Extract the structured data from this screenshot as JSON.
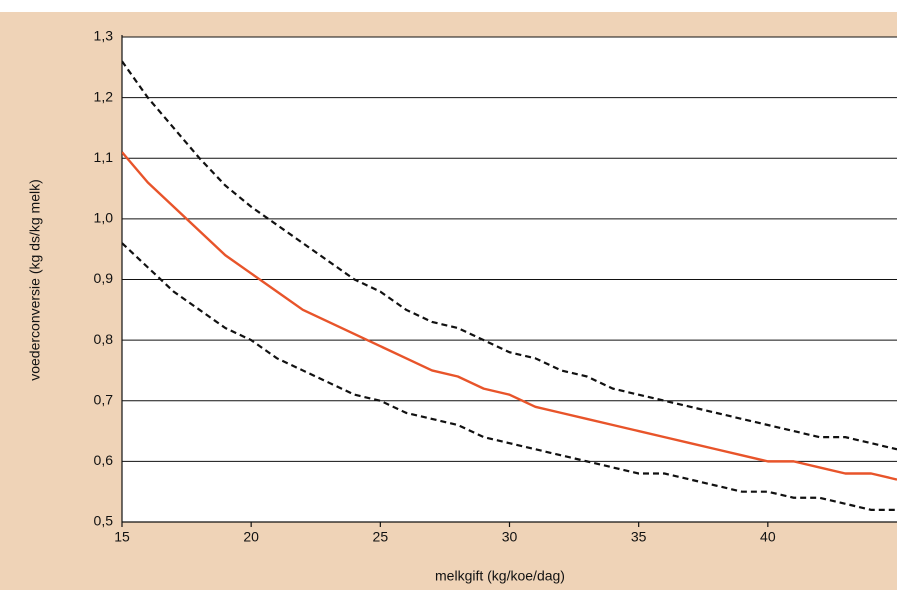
{
  "chart_data": {
    "type": "line",
    "y_label": "voederconversie (kg ds/kg melk)",
    "x_label": "melkgift (kg/koe/dag)",
    "x": [
      15,
      16,
      17,
      18,
      19,
      20,
      21,
      22,
      23,
      24,
      25,
      26,
      27,
      28,
      29,
      30,
      31,
      32,
      33,
      34,
      35,
      36,
      37,
      38,
      39,
      40,
      41,
      42,
      43,
      44,
      45
    ],
    "xlim": [
      15,
      45
    ],
    "xticks": [
      15,
      20,
      25,
      30,
      35,
      40
    ],
    "ylim": [
      0.5,
      1.3
    ],
    "yticks": [
      {
        "value": 0.5,
        "label": "0,5"
      },
      {
        "value": 0.6,
        "label": "0,6"
      },
      {
        "value": 0.7,
        "label": "0,7"
      },
      {
        "value": 0.8,
        "label": "0,8"
      },
      {
        "value": 0.9,
        "label": "0,9"
      },
      {
        "value": 1.0,
        "label": "1,0"
      },
      {
        "value": 1.1,
        "label": "1,1"
      },
      {
        "value": 1.2,
        "label": "1,2"
      },
      {
        "value": 1.3,
        "label": "1,3"
      }
    ],
    "grid": true,
    "series": [
      {
        "color": "#111111",
        "dashed": true,
        "values": [
          1.26,
          1.2,
          1.15,
          1.1,
          1.055,
          1.02,
          0.99,
          0.96,
          0.93,
          0.9,
          0.88,
          0.85,
          0.83,
          0.82,
          0.8,
          0.78,
          0.77,
          0.75,
          0.74,
          0.72,
          0.71,
          0.7,
          0.69,
          0.68,
          0.67,
          0.66,
          0.65,
          0.64,
          0.64,
          0.63,
          0.62
        ]
      },
      {
        "color": "#e8542a",
        "dashed": false,
        "values": [
          1.11,
          1.06,
          1.02,
          0.98,
          0.94,
          0.91,
          0.88,
          0.85,
          0.83,
          0.81,
          0.79,
          0.77,
          0.75,
          0.74,
          0.72,
          0.71,
          0.69,
          0.68,
          0.67,
          0.66,
          0.65,
          0.64,
          0.63,
          0.62,
          0.61,
          0.6,
          0.6,
          0.59,
          0.58,
          0.58,
          0.57
        ]
      },
      {
        "color": "#111111",
        "dashed": true,
        "values": [
          0.96,
          0.92,
          0.88,
          0.85,
          0.82,
          0.8,
          0.77,
          0.75,
          0.73,
          0.71,
          0.7,
          0.68,
          0.67,
          0.66,
          0.64,
          0.63,
          0.62,
          0.61,
          0.6,
          0.59,
          0.58,
          0.58,
          0.57,
          0.56,
          0.55,
          0.55,
          0.54,
          0.54,
          0.53,
          0.52,
          0.52
        ]
      }
    ]
  }
}
